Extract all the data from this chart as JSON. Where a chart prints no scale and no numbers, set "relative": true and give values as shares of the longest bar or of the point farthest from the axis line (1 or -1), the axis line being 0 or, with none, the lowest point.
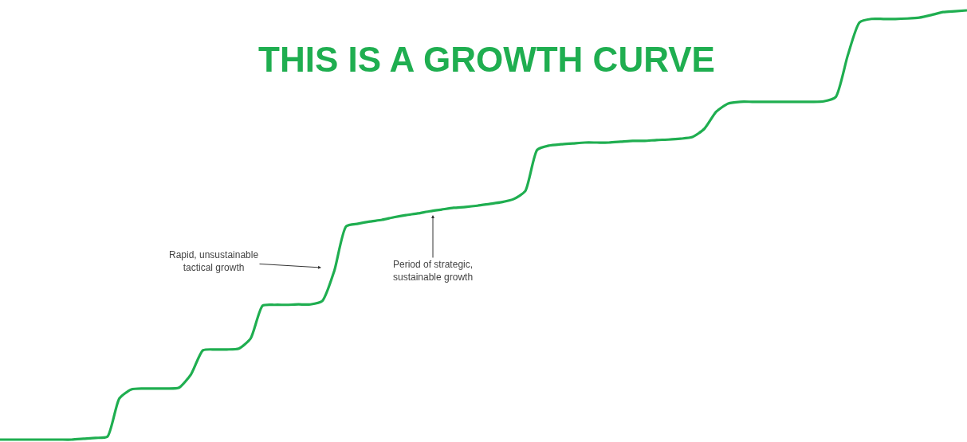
{
  "chart_data": {
    "type": "line",
    "title": "THIS IS A GROWTH CURVE",
    "relative": true,
    "marker": "none",
    "line_style": "solid",
    "categories": [
      null,
      null,
      null,
      null,
      null,
      null,
      null,
      null,
      null,
      null,
      null,
      null,
      null,
      null,
      null,
      null,
      null,
      null,
      null,
      null,
      null,
      null,
      null,
      null,
      null,
      null,
      null,
      null,
      null,
      null,
      null,
      null,
      null,
      null,
      null,
      null,
      null,
      null,
      null,
      null,
      null,
      null,
      null,
      null,
      null,
      null,
      null,
      null,
      null,
      null,
      null,
      null,
      null,
      null,
      null,
      null,
      null,
      null,
      null,
      null,
      null,
      null,
      null,
      null,
      null,
      null,
      null,
      null,
      null,
      null,
      null,
      null,
      null,
      null,
      null,
      null,
      null,
      null,
      null,
      null,
      null,
      null
    ],
    "series": [
      {
        "color": "#1fae50",
        "values": [
          0,
          0,
          0,
          0,
          0,
          0,
          0,
          0.002,
          0.004,
          0.007,
          0.096,
          0.117,
          0.119,
          0.119,
          0.119,
          0.121,
          0.152,
          0.208,
          0.21,
          0.21,
          0.212,
          0.236,
          0.312,
          0.314,
          0.314,
          0.315,
          0.315,
          0.323,
          0.393,
          0.497,
          0.503,
          0.508,
          0.512,
          0.518,
          0.523,
          0.527,
          0.532,
          0.536,
          0.54,
          0.542,
          0.545,
          0.549,
          0.553,
          0.56,
          0.579,
          0.675,
          0.685,
          0.688,
          0.69,
          0.692,
          0.692,
          0.692,
          0.694,
          0.696,
          0.696,
          0.698,
          0.699,
          0.701,
          0.705,
          0.724,
          0.764,
          0.783,
          0.787,
          0.787,
          0.787,
          0.787,
          0.787,
          0.787,
          0.787,
          0.788,
          0.798,
          0.894,
          0.972,
          0.98,
          0.98,
          0.98,
          0.981,
          0.983,
          0.989,
          0.996,
          0.998,
          1
        ]
      }
    ],
    "annotations": [
      "Rapid, unsustainable\ntactical growth",
      "Period of strategic,\nsustainable growth"
    ]
  }
}
